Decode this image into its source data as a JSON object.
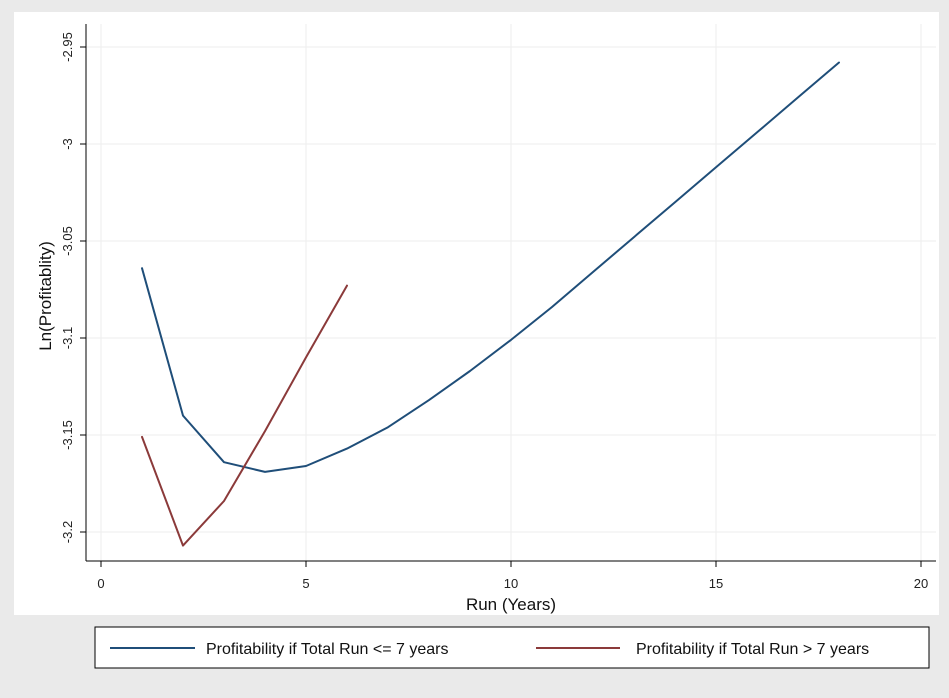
{
  "chart_data": {
    "type": "line",
    "xlabel": "Run (Years)",
    "ylabel": "Ln(Profitablity)",
    "xlim": [
      0,
      20
    ],
    "ylim": [
      -3.2,
      -2.95
    ],
    "x_ticks": [
      0,
      5,
      10,
      15,
      20
    ],
    "x_tick_labels": [
      "0",
      "5",
      "10",
      "15",
      "20"
    ],
    "y_ticks": [
      -3.2,
      -3.15,
      -3.1,
      -3.05,
      -3.0,
      -2.95
    ],
    "y_tick_labels": [
      "-3.2",
      "-3.15",
      "-3.1",
      "-3.05",
      "-3",
      "-2.95"
    ],
    "grid": true,
    "legend_position": "bottom",
    "series": [
      {
        "name": "Profitability if Total Run <= 7 years",
        "color": "#1f4e79",
        "x": [
          1,
          2,
          3,
          4,
          5,
          6,
          7,
          8,
          9,
          10,
          11,
          12,
          13,
          14,
          15,
          16,
          17,
          18
        ],
        "y": [
          -3.064,
          -3.14,
          -3.164,
          -3.169,
          -3.166,
          -3.157,
          -3.146,
          -3.132,
          -3.117,
          -3.101,
          -3.084,
          -3.066,
          -3.048,
          -3.03,
          -3.012,
          -2.994,
          -2.976,
          -2.958
        ]
      },
      {
        "name": "Profitability if Total Run > 7 years",
        "color": "#8b3a3a",
        "x": [
          1,
          2,
          3,
          4,
          5,
          6
        ],
        "y": [
          -3.151,
          -3.207,
          -3.184,
          -3.148,
          -3.11,
          -3.073
        ]
      }
    ]
  }
}
